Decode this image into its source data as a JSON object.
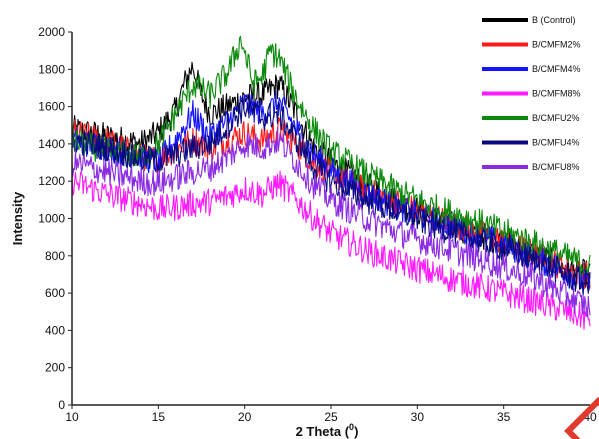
{
  "chart_data": {
    "type": "line",
    "title": "",
    "xlabel": "2 Theta (",
    "xlabel_sup": "0",
    "xlabel_suffix": ")",
    "ylabel": "Intensity",
    "xlim": [
      10,
      40
    ],
    "ylim": [
      0,
      2000
    ],
    "xticks": [
      10,
      15,
      20,
      25,
      30,
      35,
      40
    ],
    "yticks": [
      0,
      200,
      400,
      600,
      800,
      1000,
      1200,
      1400,
      1600,
      1800,
      2000
    ],
    "grid": false,
    "legend_position": "top-right",
    "series": [
      {
        "name": "B (Control)",
        "color": "#000000",
        "x": [
          10,
          12,
          14,
          15,
          16,
          16.5,
          17,
          17.5,
          18,
          19,
          20,
          21,
          22,
          23,
          24,
          25,
          27,
          29,
          31,
          33,
          35,
          37,
          38,
          39,
          40
        ],
        "y": [
          1480,
          1440,
          1400,
          1460,
          1580,
          1720,
          1820,
          1660,
          1560,
          1600,
          1650,
          1660,
          1720,
          1560,
          1380,
          1300,
          1180,
          1080,
          1000,
          930,
          870,
          800,
          760,
          720,
          700
        ]
      },
      {
        "name": "B/CMFM2%",
        "color": "#ff1a1a",
        "x": [
          10,
          12,
          14,
          15,
          16,
          17,
          18,
          19,
          20,
          21,
          22,
          23,
          24,
          25,
          27,
          29,
          31,
          33,
          35,
          37,
          38,
          39,
          40
        ],
        "y": [
          1460,
          1420,
          1330,
          1320,
          1370,
          1420,
          1380,
          1420,
          1460,
          1420,
          1480,
          1400,
          1300,
          1240,
          1150,
          1080,
          1010,
          940,
          880,
          800,
          760,
          720,
          690
        ]
      },
      {
        "name": "B/CMFM4%",
        "color": "#1414ff",
        "x": [
          10,
          12,
          14,
          15,
          16,
          17,
          18,
          19,
          20,
          21,
          22,
          23,
          24,
          25,
          27,
          29,
          31,
          33,
          35,
          37,
          38,
          39,
          40
        ],
        "y": [
          1420,
          1380,
          1330,
          1300,
          1420,
          1560,
          1440,
          1520,
          1620,
          1560,
          1620,
          1480,
          1340,
          1260,
          1140,
          1060,
          990,
          930,
          860,
          780,
          740,
          690,
          650
        ]
      },
      {
        "name": "B/CMFM8%",
        "color": "#ff1aff",
        "x": [
          10,
          12,
          14,
          15,
          16,
          17,
          18,
          19,
          20,
          21,
          22,
          23,
          24,
          25,
          27,
          29,
          31,
          33,
          35,
          37,
          38,
          39,
          40
        ],
        "y": [
          1200,
          1130,
          1080,
          1050,
          1060,
          1080,
          1090,
          1120,
          1160,
          1130,
          1190,
          1100,
          1000,
          920,
          830,
          760,
          700,
          650,
          600,
          550,
          520,
          490,
          460
        ]
      },
      {
        "name": "B/CMFU2%",
        "color": "#0c8a0c",
        "x": [
          10,
          12,
          14,
          15,
          16,
          17,
          18,
          19,
          19.8,
          20.5,
          21,
          21.5,
          22,
          23,
          24,
          25,
          27,
          29,
          31,
          33,
          35,
          37,
          38,
          39,
          40
        ],
        "y": [
          1420,
          1360,
          1330,
          1400,
          1560,
          1720,
          1660,
          1780,
          1960,
          1720,
          1760,
          1900,
          1860,
          1640,
          1480,
          1360,
          1240,
          1140,
          1060,
          1000,
          930,
          860,
          820,
          780,
          740
        ]
      },
      {
        "name": "B/CMFU4%",
        "color": "#0a0a80",
        "x": [
          10,
          12,
          14,
          15,
          16,
          17,
          18,
          19,
          20,
          21,
          22,
          23,
          24,
          25,
          27,
          29,
          31,
          33,
          35,
          37,
          38,
          39,
          40
        ],
        "y": [
          1420,
          1380,
          1320,
          1310,
          1340,
          1380,
          1400,
          1500,
          1600,
          1540,
          1560,
          1420,
          1280,
          1200,
          1100,
          1030,
          960,
          900,
          840,
          770,
          730,
          680,
          640
        ]
      },
      {
        "name": "B/CMFU8%",
        "color": "#8a2be2",
        "x": [
          10,
          12,
          14,
          15,
          16,
          17,
          18,
          19,
          20,
          21,
          22,
          23,
          24,
          25,
          27,
          29,
          31,
          33,
          35,
          37,
          38,
          39,
          40
        ],
        "y": [
          1300,
          1250,
          1200,
          1190,
          1220,
          1250,
          1270,
          1330,
          1400,
          1380,
          1420,
          1300,
          1180,
          1100,
          1000,
          920,
          860,
          800,
          740,
          670,
          620,
          570,
          520
        ]
      }
    ]
  }
}
